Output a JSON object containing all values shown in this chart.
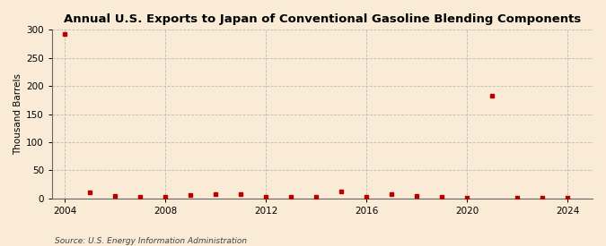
{
  "title": "Annual U.S. Exports to Japan of Conventional Gasoline Blending Components",
  "ylabel": "Thousand Barrels",
  "source": "Source: U.S. Energy Information Administration",
  "background_color": "#faebd7",
  "xlim": [
    2003.5,
    2025
  ],
  "ylim": [
    0,
    300
  ],
  "yticks": [
    0,
    50,
    100,
    150,
    200,
    250,
    300
  ],
  "xticks": [
    2004,
    2008,
    2012,
    2016,
    2020,
    2024
  ],
  "data_points": {
    "years": [
      2004,
      2005,
      2006,
      2007,
      2008,
      2009,
      2010,
      2011,
      2012,
      2013,
      2014,
      2015,
      2016,
      2017,
      2018,
      2019,
      2020,
      2021,
      2022,
      2023,
      2024
    ],
    "values": [
      293,
      10,
      4,
      3,
      3,
      6,
      7,
      7,
      3,
      2,
      2,
      12,
      2,
      7,
      4,
      2,
      1,
      183,
      1,
      1,
      1
    ]
  },
  "marker_color": "#bb0000",
  "marker_size": 3.5,
  "grid_color": "#bbbbbb",
  "grid_linestyle": "--",
  "title_fontsize": 9.5,
  "label_fontsize": 7.5,
  "tick_fontsize": 7.5,
  "source_fontsize": 6.5
}
